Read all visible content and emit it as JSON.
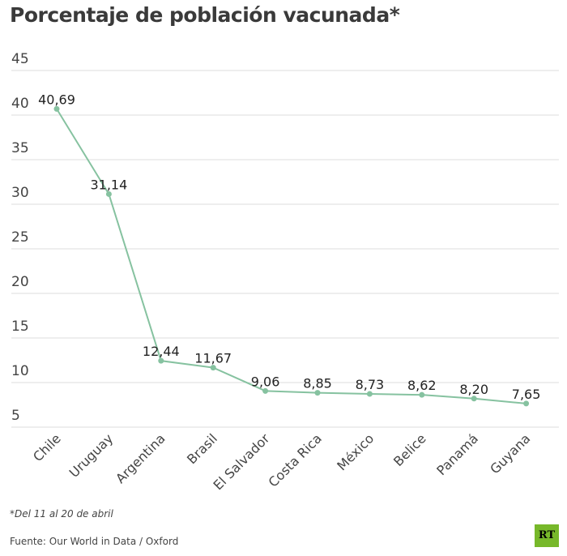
{
  "header": {
    "title": "Porcentaje de población vacunada*"
  },
  "footer": {
    "note": "*Del 11 al 20 de abril",
    "source": "Fuente: Our World in Data / Oxford",
    "logo": "RT"
  },
  "colors": {
    "line": "#86c2a0",
    "grid": "#dddddd",
    "text": "#333333",
    "logo": "#77b82a"
  },
  "chart_data": {
    "type": "line",
    "title": "Porcentaje de población vacunada*",
    "xlabel": "",
    "ylabel": "",
    "categories": [
      "Chile",
      "Uruguay",
      "Argentina",
      "Brasil",
      "El Salvador",
      "Costa Rica",
      "México",
      "Belice",
      "Panamá",
      "Guyana"
    ],
    "values": [
      40.69,
      31.14,
      12.44,
      11.67,
      9.06,
      8.85,
      8.73,
      8.62,
      8.2,
      7.65
    ],
    "labels": [
      "40,69",
      "31,14",
      "12,44",
      "11,67",
      "9,06",
      "8,85",
      "8,73",
      "8,62",
      "8,20",
      "7,65"
    ],
    "ylim": [
      5,
      45
    ],
    "yticks": [
      5,
      10,
      15,
      20,
      25,
      30,
      35,
      40,
      45
    ],
    "grid": true
  }
}
